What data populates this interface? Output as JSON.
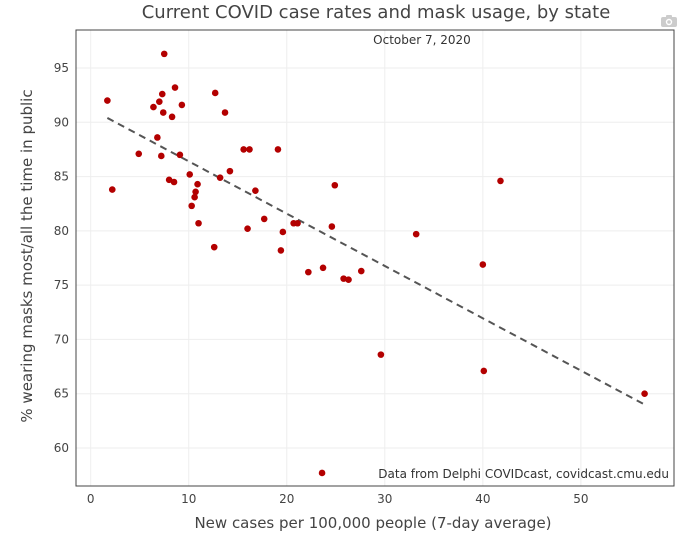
{
  "colors": {
    "point": "#b30000",
    "trend": "#555555",
    "text": "#444444"
  },
  "toolbar": {
    "camera_icon": "camera-icon"
  },
  "chart_data": {
    "type": "scatter",
    "title": "Current COVID case rates and mask usage, by state",
    "subtitle": "October 7, 2020",
    "xlabel": "New cases per 100,000 people (7-day average)",
    "ylabel": "% wearing masks most/all the time in public",
    "xlim": [
      -1.5,
      59.5
    ],
    "ylim": [
      56.5,
      98.5
    ],
    "xticks": [
      0,
      10,
      20,
      30,
      40,
      50
    ],
    "yticks": [
      60,
      65,
      70,
      75,
      80,
      85,
      90,
      95
    ],
    "grid": true,
    "annotation": "Data from Delphi COVIDcast, covidcast.cmu.edu",
    "points": [
      [
        1.7,
        92.0
      ],
      [
        2.2,
        83.8
      ],
      [
        4.9,
        87.1
      ],
      [
        6.4,
        91.4
      ],
      [
        6.8,
        88.6
      ],
      [
        7.0,
        91.9
      ],
      [
        7.2,
        86.9
      ],
      [
        7.3,
        92.6
      ],
      [
        7.4,
        90.9
      ],
      [
        7.5,
        96.3
      ],
      [
        8.0,
        84.7
      ],
      [
        8.3,
        90.5
      ],
      [
        8.5,
        84.5
      ],
      [
        8.6,
        93.2
      ],
      [
        9.1,
        87.0
      ],
      [
        9.3,
        91.6
      ],
      [
        10.1,
        85.2
      ],
      [
        10.3,
        82.3
      ],
      [
        10.6,
        83.1
      ],
      [
        10.7,
        83.6
      ],
      [
        10.9,
        84.3
      ],
      [
        11.0,
        80.7
      ],
      [
        12.6,
        78.5
      ],
      [
        12.7,
        92.7
      ],
      [
        13.2,
        84.9
      ],
      [
        13.7,
        90.9
      ],
      [
        14.2,
        85.5
      ],
      [
        15.6,
        87.5
      ],
      [
        16.0,
        80.2
      ],
      [
        16.2,
        87.5
      ],
      [
        16.8,
        83.7
      ],
      [
        17.7,
        81.1
      ],
      [
        19.1,
        87.5
      ],
      [
        19.4,
        78.2
      ],
      [
        19.6,
        79.9
      ],
      [
        20.7,
        80.7
      ],
      [
        21.1,
        80.7
      ],
      [
        22.2,
        76.2
      ],
      [
        23.6,
        57.7
      ],
      [
        23.7,
        76.6
      ],
      [
        24.6,
        80.4
      ],
      [
        24.9,
        84.2
      ],
      [
        25.8,
        75.6
      ],
      [
        26.3,
        75.5
      ],
      [
        27.6,
        76.3
      ],
      [
        29.6,
        68.6
      ],
      [
        33.2,
        79.7
      ],
      [
        40.0,
        76.9
      ],
      [
        40.1,
        67.1
      ],
      [
        41.8,
        84.6
      ],
      [
        56.5,
        65.0
      ]
    ],
    "trendline": {
      "style": "dashed",
      "from": [
        1.7,
        90.4
      ],
      "to": [
        56.5,
        64.0
      ]
    }
  }
}
